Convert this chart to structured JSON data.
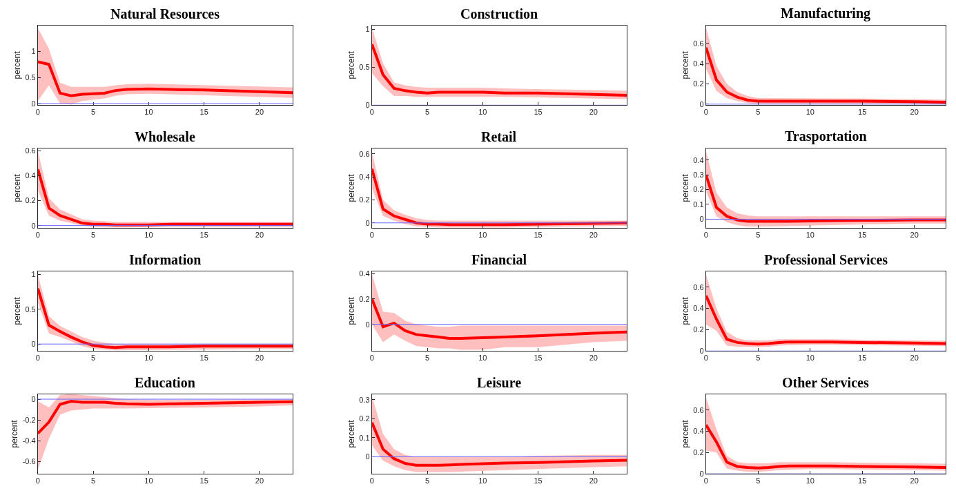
{
  "chart_data": [
    {
      "type": "line",
      "title": "Natural Resources",
      "ylabel": "percent",
      "x": [
        0,
        1,
        2,
        3,
        4,
        5,
        6,
        7,
        8,
        10,
        12,
        15,
        20,
        23
      ],
      "xlim": [
        0,
        23
      ],
      "xticks": [
        0,
        5,
        10,
        15,
        20
      ],
      "ylim": [
        -0.03,
        1.5
      ],
      "yticks": [
        0,
        0.5,
        1
      ],
      "ref_lines": [
        {
          "axis": "y",
          "value": 0,
          "color": "#6666ff"
        }
      ],
      "series": [
        {
          "color": "#ff0000",
          "values": [
            0.8,
            0.75,
            0.2,
            0.15,
            0.18,
            0.19,
            0.2,
            0.25,
            0.27,
            0.28,
            0.27,
            0.26,
            0.23,
            0.21
          ],
          "upper": [
            1.45,
            1.05,
            0.4,
            0.32,
            0.32,
            0.32,
            0.32,
            0.35,
            0.37,
            0.38,
            0.37,
            0.36,
            0.33,
            0.31
          ],
          "lower": [
            0.05,
            0.35,
            0.0,
            -0.02,
            0.05,
            0.08,
            0.1,
            0.15,
            0.18,
            0.19,
            0.18,
            0.16,
            0.13,
            0.11
          ]
        }
      ]
    },
    {
      "type": "line",
      "title": "Construction",
      "ylabel": "percent",
      "x": [
        0,
        1,
        2,
        3,
        4,
        5,
        6,
        7,
        8,
        10,
        12,
        15,
        20,
        23
      ],
      "xlim": [
        0,
        23
      ],
      "xticks": [
        0,
        5,
        10,
        15,
        20
      ],
      "ylim": [
        0,
        1.05
      ],
      "yticks": [
        0,
        0.5,
        1
      ],
      "ref_lines": [
        {
          "axis": "y",
          "value": 0,
          "color": "#6666ff"
        }
      ],
      "series": [
        {
          "color": "#ff0000",
          "values": [
            0.8,
            0.4,
            0.22,
            0.19,
            0.17,
            0.16,
            0.17,
            0.17,
            0.17,
            0.17,
            0.16,
            0.16,
            0.14,
            0.13
          ],
          "upper": [
            1.02,
            0.55,
            0.3,
            0.26,
            0.24,
            0.23,
            0.23,
            0.23,
            0.23,
            0.23,
            0.22,
            0.21,
            0.2,
            0.19
          ],
          "lower": [
            0.42,
            0.25,
            0.12,
            0.12,
            0.11,
            0.11,
            0.11,
            0.11,
            0.11,
            0.11,
            0.11,
            0.1,
            0.09,
            0.08
          ]
        }
      ]
    },
    {
      "type": "line",
      "title": "Manufacturing",
      "ylabel": "percent",
      "x": [
        0,
        1,
        2,
        3,
        4,
        5,
        6,
        7,
        8,
        10,
        12,
        15,
        20,
        23
      ],
      "xlim": [
        0,
        23
      ],
      "xticks": [
        0,
        5,
        10,
        15,
        20
      ],
      "ylim": [
        -0.01,
        0.78
      ],
      "yticks": [
        0,
        0.2,
        0.4,
        0.6
      ],
      "ref_lines": [
        {
          "axis": "y",
          "value": 0,
          "color": "#6666ff"
        }
      ],
      "series": [
        {
          "color": "#ff0000",
          "values": [
            0.56,
            0.24,
            0.12,
            0.07,
            0.04,
            0.03,
            0.03,
            0.03,
            0.03,
            0.03,
            0.03,
            0.03,
            0.025,
            0.02
          ],
          "upper": [
            0.76,
            0.38,
            0.2,
            0.12,
            0.08,
            0.06,
            0.06,
            0.06,
            0.06,
            0.06,
            0.06,
            0.055,
            0.05,
            0.045
          ],
          "lower": [
            0.35,
            0.13,
            0.06,
            0.03,
            0.01,
            0.0,
            0.0,
            0.005,
            0.005,
            0.005,
            0.005,
            0.005,
            0.0,
            0.0
          ]
        }
      ]
    },
    {
      "type": "line",
      "title": "Wholesale",
      "ylabel": "percent",
      "x": [
        0,
        1,
        2,
        3,
        4,
        5,
        6,
        7,
        8,
        10,
        12,
        15,
        20,
        23
      ],
      "xlim": [
        0,
        23
      ],
      "xticks": [
        0,
        5,
        10,
        15,
        20
      ],
      "ylim": [
        -0.02,
        0.62
      ],
      "yticks": [
        0,
        0.2,
        0.4,
        0.6
      ],
      "ref_lines": [
        {
          "axis": "y",
          "value": 0,
          "color": "#6666ff"
        }
      ],
      "series": [
        {
          "color": "#ff0000",
          "values": [
            0.45,
            0.14,
            0.08,
            0.05,
            0.02,
            0.01,
            0.01,
            0.005,
            0.005,
            0.005,
            0.01,
            0.01,
            0.01,
            0.01
          ],
          "upper": [
            0.6,
            0.22,
            0.13,
            0.09,
            0.05,
            0.04,
            0.035,
            0.03,
            0.03,
            0.03,
            0.03,
            0.03,
            0.03,
            0.03
          ],
          "lower": [
            0.28,
            0.08,
            0.04,
            0.02,
            0.0,
            -0.01,
            -0.015,
            -0.015,
            -0.015,
            -0.01,
            -0.01,
            -0.01,
            -0.01,
            -0.01
          ]
        }
      ]
    },
    {
      "type": "line",
      "title": "Retail",
      "ylabel": "percent",
      "x": [
        0,
        1,
        2,
        3,
        4,
        5,
        6,
        7,
        8,
        10,
        12,
        15,
        20,
        23
      ],
      "xlim": [
        0,
        23
      ],
      "xticks": [
        0,
        5,
        10,
        15,
        20
      ],
      "ylim": [
        -0.045,
        0.65
      ],
      "yticks": [
        0,
        0.2,
        0.4,
        0.6
      ],
      "ref_lines": [
        {
          "axis": "y",
          "value": 0,
          "color": "#6666ff"
        }
      ],
      "series": [
        {
          "color": "#ff0000",
          "values": [
            0.47,
            0.12,
            0.06,
            0.03,
            0.0,
            -0.01,
            -0.01,
            -0.015,
            -0.015,
            -0.015,
            -0.015,
            -0.01,
            -0.005,
            0.0
          ],
          "upper": [
            0.62,
            0.2,
            0.11,
            0.07,
            0.04,
            0.025,
            0.02,
            0.02,
            0.02,
            0.02,
            0.02,
            0.02,
            0.02,
            0.02
          ],
          "lower": [
            0.3,
            0.06,
            0.02,
            -0.01,
            -0.03,
            -0.035,
            -0.04,
            -0.04,
            -0.04,
            -0.04,
            -0.04,
            -0.035,
            -0.03,
            -0.025
          ]
        }
      ]
    },
    {
      "type": "line",
      "title": "Trasportation",
      "ylabel": "percent",
      "x": [
        0,
        1,
        2,
        3,
        4,
        5,
        6,
        7,
        8,
        10,
        12,
        15,
        20,
        23
      ],
      "xlim": [
        0,
        23
      ],
      "xticks": [
        0,
        5,
        10,
        15,
        20
      ],
      "ylim": [
        -0.06,
        0.48
      ],
      "yticks": [
        0,
        0.1,
        0.2,
        0.3,
        0.4
      ],
      "ref_lines": [
        {
          "axis": "y",
          "value": 0,
          "color": "#6666ff"
        }
      ],
      "series": [
        {
          "color": "#ff0000",
          "values": [
            0.3,
            0.08,
            0.02,
            -0.005,
            -0.015,
            -0.015,
            -0.015,
            -0.015,
            -0.015,
            -0.012,
            -0.01,
            -0.008,
            -0.005,
            -0.005
          ],
          "upper": [
            0.46,
            0.18,
            0.08,
            0.04,
            0.025,
            0.02,
            0.02,
            0.02,
            0.02,
            0.02,
            0.02,
            0.02,
            0.02,
            0.02
          ],
          "lower": [
            0.19,
            0.02,
            -0.02,
            -0.04,
            -0.05,
            -0.05,
            -0.05,
            -0.05,
            -0.05,
            -0.045,
            -0.04,
            -0.035,
            -0.03,
            -0.03
          ]
        }
      ]
    },
    {
      "type": "line",
      "title": "Information",
      "ylabel": "percent",
      "x": [
        0,
        1,
        2,
        3,
        4,
        5,
        6,
        7,
        8,
        10,
        12,
        15,
        20,
        23
      ],
      "xlim": [
        0,
        23
      ],
      "xticks": [
        0,
        5,
        10,
        15,
        20
      ],
      "ylim": [
        -0.1,
        1.05
      ],
      "yticks": [
        0,
        0.5,
        1
      ],
      "ref_lines": [
        {
          "axis": "y",
          "value": 0,
          "color": "#6666ff"
        }
      ],
      "series": [
        {
          "color": "#ff0000",
          "values": [
            0.8,
            0.27,
            0.18,
            0.1,
            0.03,
            -0.02,
            -0.04,
            -0.05,
            -0.04,
            -0.04,
            -0.04,
            -0.03,
            -0.03,
            -0.03
          ],
          "upper": [
            1.0,
            0.4,
            0.26,
            0.18,
            0.1,
            0.05,
            0.02,
            0.0,
            0.0,
            0.0,
            0.0,
            0.0,
            0.0,
            0.0
          ],
          "lower": [
            0.6,
            0.15,
            0.1,
            0.04,
            -0.03,
            -0.07,
            -0.08,
            -0.09,
            -0.09,
            -0.09,
            -0.085,
            -0.08,
            -0.07,
            -0.07
          ]
        }
      ]
    },
    {
      "type": "line",
      "title": "Financial",
      "ylabel": "percent",
      "x": [
        0,
        1,
        2,
        3,
        4,
        5,
        6,
        7,
        8,
        10,
        12,
        15,
        20,
        23
      ],
      "xlim": [
        0,
        23
      ],
      "xticks": [
        0,
        5,
        10,
        15,
        20
      ],
      "ylim": [
        -0.21,
        0.42
      ],
      "yticks": [
        0,
        0.2,
        0.4
      ],
      "ref_lines": [
        {
          "axis": "y",
          "value": 0,
          "color": "#6666ff"
        }
      ],
      "series": [
        {
          "color": "#ff0000",
          "values": [
            0.2,
            -0.02,
            0.01,
            -0.05,
            -0.08,
            -0.09,
            -0.1,
            -0.11,
            -0.11,
            -0.105,
            -0.1,
            -0.09,
            -0.07,
            -0.06
          ],
          "upper": [
            0.4,
            0.1,
            0.09,
            0.03,
            0.0,
            -0.01,
            -0.02,
            -0.02,
            -0.01,
            -0.01,
            -0.01,
            -0.01,
            -0.01,
            -0.01
          ],
          "lower": [
            0.0,
            -0.14,
            -0.08,
            -0.13,
            -0.17,
            -0.18,
            -0.19,
            -0.19,
            -0.2,
            -0.2,
            -0.18,
            -0.18,
            -0.14,
            -0.13
          ]
        }
      ]
    },
    {
      "type": "line",
      "title": "Professional Services",
      "ylabel": "percent",
      "x": [
        0,
        1,
        2,
        3,
        4,
        5,
        6,
        7,
        8,
        10,
        12,
        15,
        20,
        23
      ],
      "xlim": [
        0,
        23
      ],
      "xticks": [
        0,
        5,
        10,
        15,
        20
      ],
      "ylim": [
        0,
        0.75
      ],
      "yticks": [
        0,
        0.2,
        0.4,
        0.6
      ],
      "ref_lines": [
        {
          "axis": "y",
          "value": 0,
          "color": "#6666ff"
        }
      ],
      "series": [
        {
          "color": "#ff0000",
          "values": [
            0.52,
            0.3,
            0.11,
            0.08,
            0.07,
            0.065,
            0.07,
            0.08,
            0.085,
            0.085,
            0.085,
            0.08,
            0.075,
            0.07
          ],
          "upper": [
            0.72,
            0.4,
            0.18,
            0.12,
            0.1,
            0.1,
            0.1,
            0.11,
            0.11,
            0.11,
            0.11,
            0.105,
            0.1,
            0.095
          ],
          "lower": [
            0.25,
            0.19,
            0.05,
            0.04,
            0.04,
            0.035,
            0.04,
            0.05,
            0.055,
            0.06,
            0.06,
            0.055,
            0.05,
            0.045
          ]
        }
      ]
    },
    {
      "type": "line",
      "title": "Education",
      "ylabel": "percent",
      "x": [
        0,
        1,
        2,
        3,
        4,
        5,
        6,
        7,
        8,
        10,
        12,
        15,
        20,
        23
      ],
      "xlim": [
        0,
        23
      ],
      "xticks": [
        0,
        5,
        10,
        15,
        20
      ],
      "ylim": [
        -0.72,
        0.05
      ],
      "yticks": [
        -0.6,
        -0.4,
        -0.2,
        0
      ],
      "ref_lines": [
        {
          "axis": "y",
          "value": 0,
          "color": "#6666ff"
        }
      ],
      "series": [
        {
          "color": "#ff0000",
          "values": [
            -0.33,
            -0.22,
            -0.05,
            -0.02,
            -0.03,
            -0.03,
            -0.03,
            -0.04,
            -0.045,
            -0.05,
            -0.045,
            -0.04,
            -0.03,
            -0.025
          ],
          "upper": [
            -0.02,
            -0.08,
            0.04,
            0.05,
            0.04,
            0.03,
            0.02,
            0.01,
            0.0,
            -0.005,
            -0.005,
            0.0,
            0.0,
            0.0
          ],
          "lower": [
            -0.68,
            -0.38,
            -0.15,
            -0.11,
            -0.1,
            -0.09,
            -0.09,
            -0.09,
            -0.09,
            -0.09,
            -0.085,
            -0.08,
            -0.07,
            -0.06
          ]
        }
      ]
    },
    {
      "type": "line",
      "title": "Leisure",
      "ylabel": "percent",
      "x": [
        0,
        1,
        2,
        3,
        4,
        5,
        6,
        7,
        8,
        10,
        12,
        15,
        20,
        23
      ],
      "xlim": [
        0,
        23
      ],
      "xticks": [
        0,
        5,
        10,
        15,
        20
      ],
      "ylim": [
        -0.09,
        0.33
      ],
      "yticks": [
        0,
        0.1,
        0.2,
        0.3
      ],
      "ref_lines": [
        {
          "axis": "y",
          "value": 0,
          "color": "#6666ff"
        }
      ],
      "series": [
        {
          "color": "#ff0000",
          "values": [
            0.18,
            0.04,
            -0.01,
            -0.035,
            -0.045,
            -0.045,
            -0.045,
            -0.043,
            -0.04,
            -0.037,
            -0.033,
            -0.03,
            -0.022,
            -0.018
          ],
          "upper": [
            0.32,
            0.12,
            0.04,
            0.01,
            0.0,
            0.0,
            0.0,
            0.0,
            0.0,
            0.0,
            0.0,
            0.005,
            0.01,
            0.01
          ],
          "lower": [
            0.06,
            -0.02,
            -0.05,
            -0.07,
            -0.08,
            -0.08,
            -0.08,
            -0.08,
            -0.08,
            -0.075,
            -0.07,
            -0.065,
            -0.055,
            -0.05
          ]
        }
      ]
    },
    {
      "type": "line",
      "title": "Other Services",
      "ylabel": "percent",
      "x": [
        0,
        1,
        2,
        3,
        4,
        5,
        6,
        7,
        8,
        10,
        12,
        15,
        20,
        23
      ],
      "xlim": [
        0,
        23
      ],
      "xticks": [
        0,
        5,
        10,
        15,
        20
      ],
      "ylim": [
        0,
        0.75
      ],
      "yticks": [
        0,
        0.2,
        0.4,
        0.6
      ],
      "ref_lines": [
        {
          "axis": "y",
          "value": 0,
          "color": "#3333aa"
        }
      ],
      "series": [
        {
          "color": "#ff0000",
          "values": [
            0.46,
            0.3,
            0.11,
            0.07,
            0.06,
            0.055,
            0.06,
            0.07,
            0.075,
            0.075,
            0.075,
            0.07,
            0.065,
            0.06
          ],
          "upper": [
            0.72,
            0.42,
            0.17,
            0.11,
            0.1,
            0.1,
            0.1,
            0.11,
            0.11,
            0.11,
            0.11,
            0.105,
            0.1,
            0.095
          ],
          "lower": [
            0.22,
            0.2,
            0.05,
            0.03,
            0.02,
            0.02,
            0.025,
            0.035,
            0.04,
            0.045,
            0.045,
            0.04,
            0.035,
            0.03
          ]
        }
      ]
    }
  ]
}
